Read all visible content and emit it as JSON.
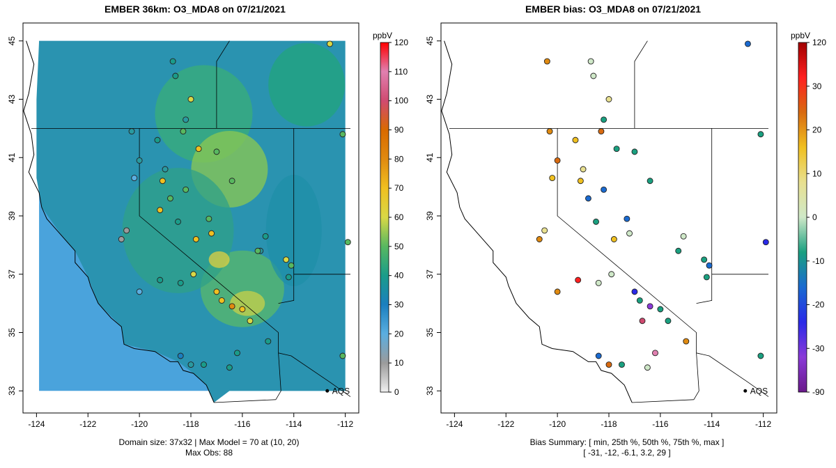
{
  "left_panel": {
    "title": "EMBER 36km: O3_MDA8 on 07/21/2021",
    "footer_line1": "Domain size: 37x32 | Max Model = 70 at (10, 20)",
    "footer_line2": "Max Obs: 88",
    "colorbar_unit": "ppbV",
    "colorbar_ticks": [
      "0",
      "10",
      "20",
      "30",
      "40",
      "50",
      "60",
      "70",
      "80",
      "90",
      "100",
      "110",
      "120"
    ],
    "colorbar_values": [
      0,
      10,
      20,
      30,
      40,
      50,
      60,
      70,
      80,
      90,
      100,
      110,
      120
    ]
  },
  "right_panel": {
    "title": "EMBER bias: O3_MDA8 on 07/21/2021",
    "footer_line1": "Bias Summary: [ min, 25th %, 50th %, 75th %, max ]",
    "footer_line2": "[ -31,   -12,   -6.1,   3.2,   29 ]",
    "colorbar_unit": "ppbV",
    "colorbar_ticks": [
      "-90",
      "-30",
      "-20",
      "-10",
      "0",
      "10",
      "20",
      "30",
      "120"
    ],
    "colorbar_values": [
      -90,
      -30,
      -20,
      -10,
      0,
      10,
      20,
      30,
      120
    ]
  },
  "map": {
    "x_ticks": [
      "-124",
      "-122",
      "-120",
      "-118",
      "-116",
      "-114",
      "-112"
    ],
    "y_ticks": [
      "33",
      "35",
      "37",
      "39",
      "41",
      "43",
      "45"
    ],
    "marker_label": "AQS",
    "lon_range": [
      -124.2,
      -111.8
    ],
    "lat_range": [
      32.6,
      45.4
    ]
  },
  "bias_summary": {
    "min": -31,
    "p25": -12,
    "median": -6.1,
    "p75": 3.2,
    "max": 29
  },
  "colors": {
    "ocean_model": "#4a9fd8",
    "land_model": "#2f8fc4",
    "o3_scale": [
      "#f0f0f0",
      "#9b9b9b",
      "#5aaee0",
      "#1b7fbf",
      "#1a9c8a",
      "#58b860",
      "#d9d846",
      "#f0c020",
      "#e08a10",
      "#d96a00",
      "#d04a70",
      "#e080b0",
      "#ff0000"
    ],
    "bias_scale": [
      "#6a1a8a",
      "#8a3ad8",
      "#2a2ae8",
      "#1a6ad0",
      "#1aa080",
      "#cfe8c8",
      "#e8e090",
      "#f0c020",
      "#d86a10",
      "#ff2020",
      "#a00000"
    ]
  }
}
